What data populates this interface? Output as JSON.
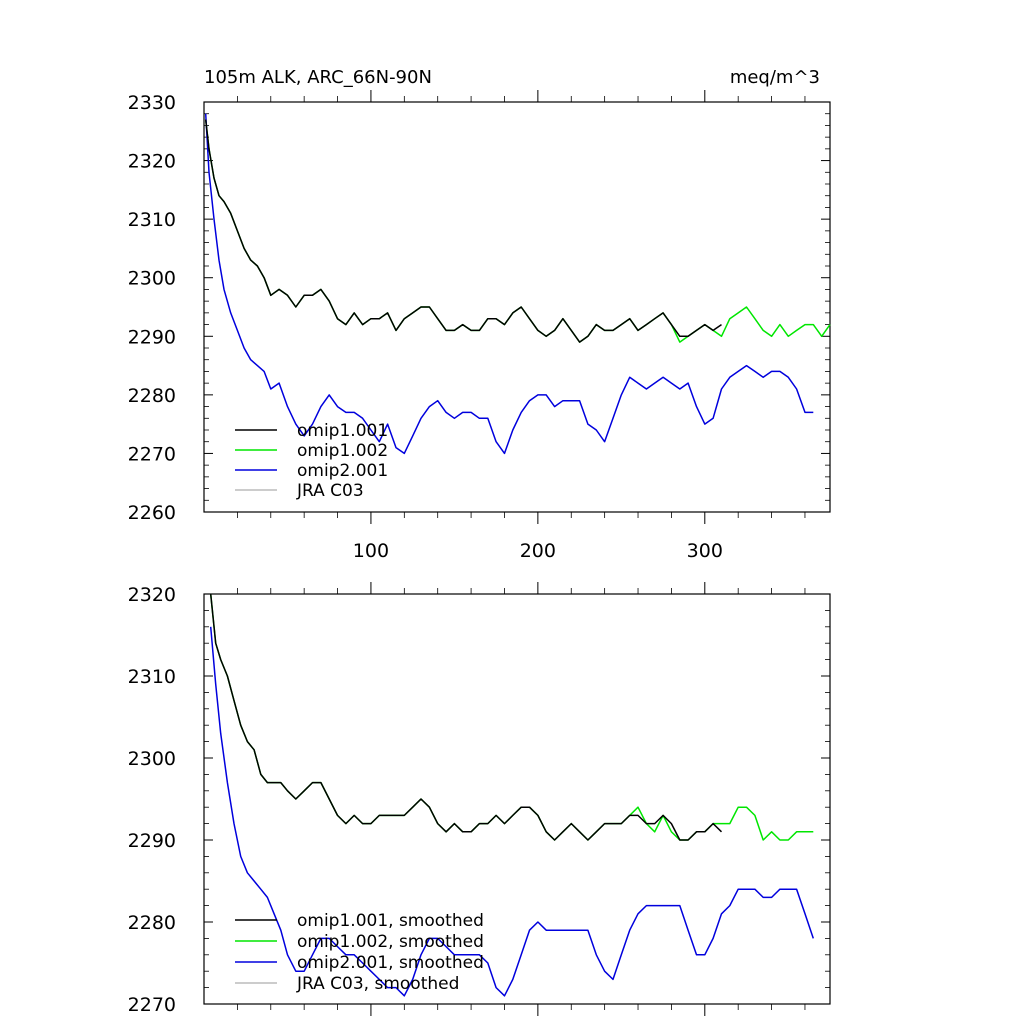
{
  "chart_data": [
    {
      "type": "line",
      "title": "105m ALK, ARC_66N-90N",
      "units": "meq/m^3",
      "xlabel": "",
      "ylabel": "",
      "xlim": [
        0,
        375
      ],
      "ylim": [
        2260,
        2330
      ],
      "xticks": [
        100,
        200,
        300
      ],
      "xtick_labels": [
        "100",
        "200",
        "300"
      ],
      "yticks": [
        2260,
        2270,
        2280,
        2290,
        2300,
        2310,
        2320,
        2330
      ],
      "ytick_labels": [
        "2260",
        "2270",
        "2280",
        "2290",
        "2300",
        "2310",
        "2320",
        "2330"
      ],
      "grid": false,
      "legend_position": "bottom-left",
      "series": [
        {
          "name": "omip1.001",
          "color": "#000000",
          "x": [
            1,
            3,
            6,
            9,
            12,
            16,
            20,
            24,
            28,
            32,
            36,
            40,
            45,
            50,
            55,
            60,
            65,
            70,
            75,
            80,
            85,
            90,
            95,
            100,
            105,
            110,
            115,
            120,
            125,
            130,
            135,
            140,
            145,
            150,
            155,
            160,
            165,
            170,
            175,
            180,
            185,
            190,
            195,
            200,
            205,
            210,
            215,
            220,
            225,
            230,
            235,
            240,
            245,
            250,
            255,
            260,
            265,
            270,
            275,
            280,
            285,
            290,
            295,
            300,
            305,
            310
          ],
          "values": [
            2327,
            2322,
            2317,
            2314,
            2313,
            2311,
            2308,
            2305,
            2303,
            2302,
            2300,
            2297,
            2298,
            2297,
            2295,
            2297,
            2297,
            2298,
            2296,
            2293,
            2292,
            2294,
            2292,
            2293,
            2293,
            2294,
            2291,
            2293,
            2294,
            2295,
            2295,
            2293,
            2291,
            2291,
            2292,
            2291,
            2291,
            2293,
            2293,
            2292,
            2294,
            2295,
            2293,
            2291,
            2290,
            2291,
            2293,
            2291,
            2289,
            2290,
            2292,
            2291,
            2291,
            2292,
            2293,
            2291,
            2292,
            2293,
            2294,
            2292,
            2290,
            2290,
            2291,
            2292,
            2291,
            2292
          ]
        },
        {
          "name": "omip1.002",
          "color": "#00e600",
          "x": [
            1,
            3,
            6,
            9,
            12,
            16,
            20,
            24,
            28,
            32,
            36,
            40,
            45,
            50,
            55,
            60,
            65,
            70,
            75,
            80,
            85,
            90,
            95,
            100,
            105,
            110,
            115,
            120,
            125,
            130,
            135,
            140,
            145,
            150,
            155,
            160,
            165,
            170,
            175,
            180,
            185,
            190,
            195,
            200,
            205,
            210,
            215,
            220,
            225,
            230,
            235,
            240,
            245,
            250,
            255,
            260,
            265,
            270,
            275,
            280,
            285,
            290,
            295,
            300,
            305,
            310,
            315,
            320,
            325,
            330,
            335,
            340,
            345,
            350,
            355,
            360,
            365,
            370,
            375
          ],
          "values": [
            2327,
            2322,
            2317,
            2314,
            2313,
            2311,
            2308,
            2305,
            2303,
            2302,
            2300,
            2297,
            2298,
            2297,
            2295,
            2297,
            2297,
            2298,
            2296,
            2293,
            2292,
            2294,
            2292,
            2293,
            2293,
            2294,
            2291,
            2293,
            2294,
            2295,
            2295,
            2293,
            2291,
            2291,
            2292,
            2291,
            2291,
            2293,
            2293,
            2292,
            2294,
            2295,
            2293,
            2291,
            2290,
            2291,
            2293,
            2291,
            2289,
            2290,
            2292,
            2291,
            2291,
            2292,
            2293,
            2291,
            2292,
            2293,
            2294,
            2292,
            2289,
            2290,
            2291,
            2292,
            2291,
            2290,
            2293,
            2294,
            2295,
            2293,
            2291,
            2290,
            2292,
            2290,
            2291,
            2292,
            2292,
            2290,
            2292
          ]
        },
        {
          "name": "omip2.001",
          "color": "#0000dd",
          "x": [
            1,
            3,
            6,
            9,
            12,
            16,
            20,
            24,
            28,
            32,
            36,
            40,
            45,
            50,
            55,
            60,
            65,
            70,
            75,
            80,
            85,
            90,
            95,
            100,
            105,
            110,
            115,
            120,
            125,
            130,
            135,
            140,
            145,
            150,
            155,
            160,
            165,
            170,
            175,
            180,
            185,
            190,
            195,
            200,
            205,
            210,
            215,
            220,
            225,
            230,
            235,
            240,
            245,
            250,
            255,
            260,
            265,
            270,
            275,
            280,
            285,
            290,
            295,
            300,
            305,
            310,
            315,
            320,
            325,
            330,
            335,
            340,
            345,
            350,
            355,
            360,
            365
          ],
          "values": [
            2328,
            2318,
            2310,
            2303,
            2298,
            2294,
            2291,
            2288,
            2286,
            2285,
            2284,
            2281,
            2282,
            2278,
            2275,
            2273,
            2275,
            2278,
            2280,
            2278,
            2277,
            2277,
            2276,
            2274,
            2272,
            2275,
            2271,
            2270,
            2273,
            2276,
            2278,
            2279,
            2277,
            2276,
            2277,
            2277,
            2276,
            2276,
            2272,
            2270,
            2274,
            2277,
            2279,
            2280,
            2280,
            2278,
            2279,
            2279,
            2279,
            2275,
            2274,
            2272,
            2276,
            2280,
            2283,
            2282,
            2281,
            2282,
            2283,
            2282,
            2281,
            2282,
            2278,
            2275,
            2276,
            2281,
            2283,
            2284,
            2285,
            2284,
            2283,
            2284,
            2284,
            2283,
            2281,
            2277,
            2277
          ]
        },
        {
          "name": "JRA C03",
          "color": "#bbbbbb",
          "x": [],
          "values": []
        }
      ]
    },
    {
      "type": "line",
      "title": "",
      "xlabel": "",
      "ylabel": "",
      "xlim": [
        0,
        375
      ],
      "ylim": [
        2270,
        2320
      ],
      "xticks": [
        100,
        200,
        300
      ],
      "xtick_labels": [],
      "yticks": [
        2270,
        2280,
        2290,
        2300,
        2310,
        2320
      ],
      "ytick_labels": [
        "2270",
        "2280",
        "2290",
        "2300",
        "2310",
        "2320"
      ],
      "grid": false,
      "legend_position": "bottom-left",
      "series": [
        {
          "name": "omip1.001, smoothed",
          "color": "#000000",
          "x": [
            4,
            7,
            10,
            14,
            18,
            22,
            26,
            30,
            34,
            38,
            42,
            46,
            50,
            55,
            60,
            65,
            70,
            75,
            80,
            85,
            90,
            95,
            100,
            105,
            110,
            115,
            120,
            125,
            130,
            135,
            140,
            145,
            150,
            155,
            160,
            165,
            170,
            175,
            180,
            185,
            190,
            195,
            200,
            205,
            210,
            215,
            220,
            225,
            230,
            235,
            240,
            245,
            250,
            255,
            260,
            265,
            270,
            275,
            280,
            285,
            290,
            295,
            300,
            305,
            310
          ],
          "values": [
            2320,
            2314,
            2312,
            2310,
            2307,
            2304,
            2302,
            2301,
            2298,
            2297,
            2297,
            2297,
            2296,
            2295,
            2296,
            2297,
            2297,
            2295,
            2293,
            2292,
            2293,
            2292,
            2292,
            2293,
            2293,
            2293,
            2293,
            2294,
            2295,
            2294,
            2292,
            2291,
            2292,
            2291,
            2291,
            2292,
            2292,
            2293,
            2292,
            2293,
            2294,
            2294,
            2293,
            2291,
            2290,
            2291,
            2292,
            2291,
            2290,
            2291,
            2292,
            2292,
            2292,
            2293,
            2293,
            2292,
            2292,
            2293,
            2292,
            2290,
            2290,
            2291,
            2291,
            2292,
            2291
          ]
        },
        {
          "name": "omip1.002, smoothed",
          "color": "#00e600",
          "x": [
            4,
            7,
            10,
            14,
            18,
            22,
            26,
            30,
            34,
            38,
            42,
            46,
            50,
            55,
            60,
            65,
            70,
            75,
            80,
            85,
            90,
            95,
            100,
            105,
            110,
            115,
            120,
            125,
            130,
            135,
            140,
            145,
            150,
            155,
            160,
            165,
            170,
            175,
            180,
            185,
            190,
            195,
            200,
            205,
            210,
            215,
            220,
            225,
            230,
            235,
            240,
            245,
            250,
            255,
            260,
            265,
            270,
            275,
            280,
            285,
            290,
            295,
            300,
            305,
            310,
            315,
            320,
            325,
            330,
            335,
            340,
            345,
            350,
            355,
            360,
            365
          ],
          "values": [
            2320,
            2314,
            2312,
            2310,
            2307,
            2304,
            2302,
            2301,
            2298,
            2297,
            2297,
            2297,
            2296,
            2295,
            2296,
            2297,
            2297,
            2295,
            2293,
            2292,
            2293,
            2292,
            2292,
            2293,
            2293,
            2293,
            2293,
            2294,
            2295,
            2294,
            2292,
            2291,
            2292,
            2291,
            2291,
            2292,
            2292,
            2293,
            2292,
            2293,
            2294,
            2294,
            2293,
            2291,
            2290,
            2291,
            2292,
            2291,
            2290,
            2291,
            2292,
            2292,
            2292,
            2293,
            2294,
            2292,
            2291,
            2293,
            2291,
            2290,
            2290,
            2291,
            2291,
            2292,
            2292,
            2292,
            2294,
            2294,
            2293,
            2290,
            2291,
            2290,
            2290,
            2291,
            2291,
            2291
          ]
        },
        {
          "name": "omip2.001, smoothed",
          "color": "#0000dd",
          "x": [
            4,
            7,
            10,
            14,
            18,
            22,
            26,
            30,
            34,
            38,
            42,
            46,
            50,
            55,
            60,
            65,
            70,
            75,
            80,
            85,
            90,
            95,
            100,
            105,
            110,
            115,
            120,
            125,
            130,
            135,
            140,
            145,
            150,
            155,
            160,
            165,
            170,
            175,
            180,
            185,
            190,
            195,
            200,
            205,
            210,
            215,
            220,
            225,
            230,
            235,
            240,
            245,
            250,
            255,
            260,
            265,
            270,
            275,
            280,
            285,
            290,
            295,
            300,
            305,
            310,
            315,
            320,
            325,
            330,
            335,
            340,
            345,
            350,
            355,
            360,
            365
          ],
          "values": [
            2316,
            2309,
            2303,
            2297,
            2292,
            2288,
            2286,
            2285,
            2284,
            2283,
            2281,
            2279,
            2276,
            2274,
            2274,
            2276,
            2278,
            2278,
            2277,
            2276,
            2276,
            2275,
            2274,
            2273,
            2272,
            2272,
            2271,
            2273,
            2276,
            2278,
            2278,
            2277,
            2276,
            2276,
            2276,
            2276,
            2275,
            2272,
            2271,
            2273,
            2276,
            2279,
            2280,
            2279,
            2279,
            2279,
            2279,
            2279,
            2279,
            2276,
            2274,
            2273,
            2276,
            2279,
            2281,
            2282,
            2282,
            2282,
            2282,
            2282,
            2279,
            2276,
            2276,
            2278,
            2281,
            2282,
            2284,
            2284,
            2284,
            2283,
            2283,
            2284,
            2284,
            2284,
            2281,
            2278
          ]
        },
        {
          "name": "JRA C03, smoothed",
          "color": "#bbbbbb",
          "x": [],
          "values": []
        }
      ]
    }
  ]
}
